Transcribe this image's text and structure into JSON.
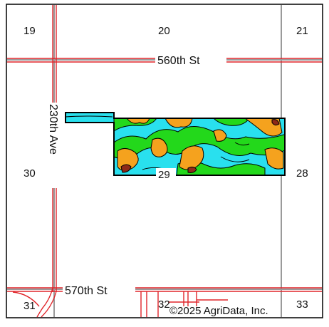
{
  "map": {
    "section_numbers": {
      "s19": "19",
      "s20": "20",
      "s21": "21",
      "s28": "28",
      "s29": "29",
      "s30": "30",
      "s31": "31",
      "s32": "32",
      "s33": "33"
    },
    "roads": {
      "street_north": "560th St",
      "street_south": "570th St",
      "avenue_west": "230th Ave"
    },
    "copyright": "©2025 AgriData, Inc.",
    "colors": {
      "section_line": "#9a9a9a",
      "road": "#e0252a",
      "zone_orange": "#f5a21e",
      "zone_cyan": "#29e0ee",
      "zone_green": "#23d81b",
      "zone_dark": "#8e2a18",
      "boundary": "#000000"
    }
  }
}
